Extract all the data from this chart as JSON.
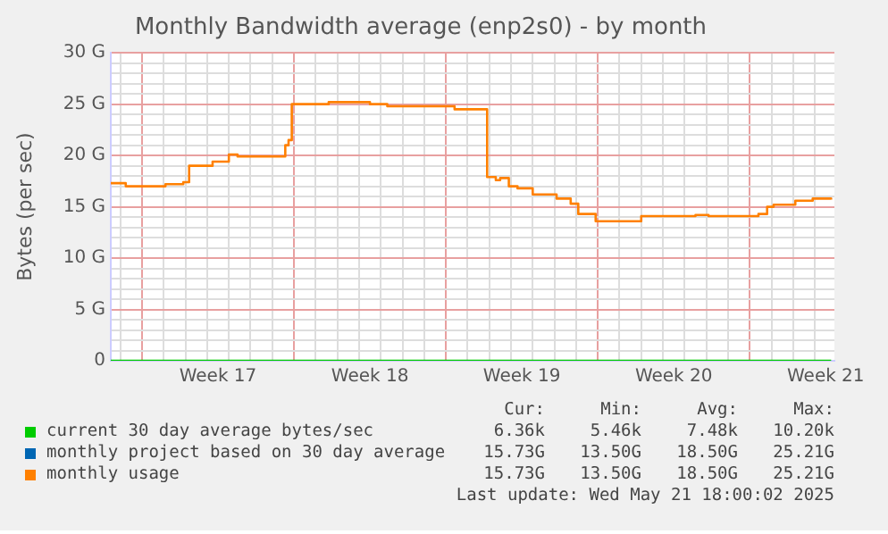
{
  "chart_data": {
    "type": "step",
    "title": "Monthly Bandwidth average (enp2s0) - by month",
    "ylabel": "Bytes (per sec)",
    "xlim": [
      "2025-04-19T13:26",
      "2025-05-22T21:36"
    ],
    "xticks": [
      {
        "value": "2025-04-20",
        "label": null
      },
      {
        "value": "2025-04-21",
        "label": null
      },
      {
        "value": "2025-04-22",
        "label": null
      },
      {
        "value": "2025-04-23",
        "label": null
      },
      {
        "value": "2025-04-24",
        "label": null
      },
      {
        "value": "2025-04-24T12:00",
        "label": "Week 17"
      },
      {
        "value": "2025-04-25",
        "label": null
      },
      {
        "value": "2025-04-26",
        "label": null
      },
      {
        "value": "2025-04-27",
        "label": null
      },
      {
        "value": "2025-04-28",
        "label": null
      },
      {
        "value": "2025-04-29",
        "label": null
      },
      {
        "value": "2025-04-30",
        "label": null
      },
      {
        "value": "2025-05-01",
        "label": null
      },
      {
        "value": "2025-05-01T12:00",
        "label": "Week 18"
      },
      {
        "value": "2025-05-02",
        "label": null
      },
      {
        "value": "2025-05-03",
        "label": null
      },
      {
        "value": "2025-05-04",
        "label": null
      },
      {
        "value": "2025-05-05",
        "label": null
      },
      {
        "value": "2025-05-06",
        "label": null
      },
      {
        "value": "2025-05-07",
        "label": null
      },
      {
        "value": "2025-05-08",
        "label": null
      },
      {
        "value": "2025-05-08T12:00",
        "label": "Week 19"
      },
      {
        "value": "2025-05-09",
        "label": null
      },
      {
        "value": "2025-05-10",
        "label": null
      },
      {
        "value": "2025-05-11",
        "label": null
      },
      {
        "value": "2025-05-12",
        "label": null
      },
      {
        "value": "2025-05-13",
        "label": null
      },
      {
        "value": "2025-05-14",
        "label": null
      },
      {
        "value": "2025-05-15",
        "label": null
      },
      {
        "value": "2025-05-15T12:00",
        "label": "Week 20"
      },
      {
        "value": "2025-05-16",
        "label": null
      },
      {
        "value": "2025-05-17",
        "label": null
      },
      {
        "value": "2025-05-18",
        "label": null
      },
      {
        "value": "2025-05-19",
        "label": null
      },
      {
        "value": "2025-05-20",
        "label": null
      },
      {
        "value": "2025-05-21",
        "label": null
      },
      {
        "value": "2025-05-22",
        "label": null
      },
      {
        "value": "2025-05-22T12:00",
        "label": "Week 21"
      }
    ],
    "ylim": [
      0,
      30
    ],
    "yticks": [
      0,
      {
        "value": 1,
        "label": null
      },
      {
        "value": 2,
        "label": null
      },
      {
        "value": 3,
        "label": null
      },
      {
        "value": 4,
        "label": null
      },
      {
        "value": 5,
        "label": "5 G"
      },
      {
        "value": 6,
        "label": null
      },
      {
        "value": 7,
        "label": null
      },
      {
        "value": 8,
        "label": null
      },
      {
        "value": 9,
        "label": null
      },
      {
        "value": 10,
        "label": "10 G"
      },
      {
        "value": 11,
        "label": null
      },
      {
        "value": 12,
        "label": null
      },
      {
        "value": 13,
        "label": null
      },
      {
        "value": 14,
        "label": null
      },
      {
        "value": 15,
        "label": "15 G"
      },
      {
        "value": 16,
        "label": null
      },
      {
        "value": 17,
        "label": null
      },
      {
        "value": 18,
        "label": null
      },
      {
        "value": 19,
        "label": null
      },
      {
        "value": 20,
        "label": "20 G"
      },
      {
        "value": 21,
        "label": null
      },
      {
        "value": 22,
        "label": null
      },
      {
        "value": 23,
        "label": null
      },
      {
        "value": 24,
        "label": null
      },
      {
        "value": 25,
        "label": "25 G"
      },
      {
        "value": 26,
        "label": null
      },
      {
        "value": 27,
        "label": null
      },
      {
        "value": 28,
        "label": null
      },
      {
        "value": 29,
        "label": null
      },
      {
        "value": 30,
        "label": "30 G"
      }
    ],
    "grid": true,
    "legend": "bottom",
    "marker": "none",
    "line_style": "solid",
    "series": [
      {
        "name": "current 30 day average bytes/sec",
        "color": "#00cc00",
        "x": [
          "2025-04-19T13:26",
          "2025-05-22T18:00"
        ],
        "values": [
          0,
          0
        ]
      },
      {
        "name": "monthly project based on 30 day average",
        "color": "#0066b3"
      },
      {
        "name": "monthly usage",
        "color": "#ff8000",
        "x": [
          "2025-04-19T13:26",
          "2025-04-20T06:00",
          "2025-04-22T01:55",
          "2025-04-22T21:36",
          "2025-04-23T04:05",
          "2025-04-24T06:00",
          "2025-04-25T00:00",
          "2025-04-25T09:36",
          "2025-04-27T14:24",
          "2025-04-27T18:00",
          "2025-04-27T21:36",
          "2025-04-29T14:24",
          "2025-05-01T12:00",
          "2025-05-02T07:12",
          "2025-05-05T09:36",
          "2025-05-06T14:24",
          "2025-05-06T21:36",
          "2025-05-07T07:12",
          "2025-05-07T12:00",
          "2025-05-07T21:36",
          "2025-05-08T07:12",
          "2025-05-09T00:00",
          "2025-05-10T02:24",
          "2025-05-10T18:00",
          "2025-05-11T02:24",
          "2025-05-11T21:36",
          "2025-05-14T00:00",
          "2025-05-16T07:12",
          "2025-05-16T12:00",
          "2025-05-17T02:24",
          "2025-05-19T04:48",
          "2025-05-19T09:36",
          "2025-05-19T19:12",
          "2025-05-20T02:24",
          "2025-05-21T02:24",
          "2025-05-21T21:36",
          "2025-05-22T18:00"
        ],
        "values": [
          17.3,
          17.0,
          17.2,
          17.4,
          19.0,
          19.4,
          20.1,
          19.9,
          21.0,
          21.5,
          25.0,
          25.2,
          25.0,
          24.8,
          24.5,
          24.5,
          17.9,
          17.6,
          17.8,
          17.0,
          16.8,
          16.2,
          15.8,
          15.3,
          14.3,
          13.6,
          14.1,
          14.1,
          14.2,
          14.1,
          14.1,
          14.3,
          15.0,
          15.2,
          15.6,
          15.8,
          15.7
        ]
      }
    ],
    "annotations": [
      "Cur:",
      "Min:",
      "Avg:",
      "Max:",
      "6.36k",
      "5.46k",
      "7.48k",
      "10.20k",
      "15.73G",
      "13.50G",
      "18.50G",
      "25.21G",
      "15.73G",
      "13.50G",
      "18.50G",
      "25.21G",
      "Last update: Wed May 21 18:00:02 2025"
    ]
  }
}
